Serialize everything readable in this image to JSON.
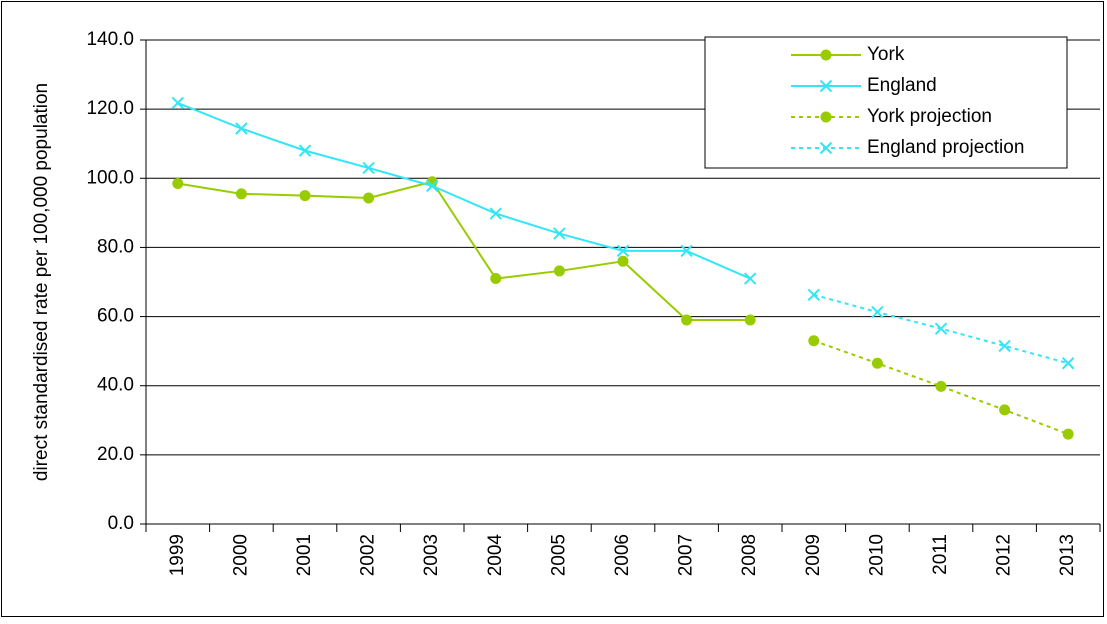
{
  "chart_data": {
    "type": "line",
    "y_label": "direct standardised rate per 100,000 population",
    "categories": [
      "1999",
      "2000",
      "2001",
      "2002",
      "2003",
      "2004",
      "2005",
      "2006",
      "2007",
      "2008",
      "2009",
      "2010",
      "2011",
      "2012",
      "2013"
    ],
    "series": [
      {
        "name": "York",
        "color": "#99cc00",
        "marker": "circle",
        "dashed": false,
        "values": [
          98.5,
          95.5,
          95.0,
          94.3,
          99.0,
          71.0,
          73.2,
          76.0,
          59.0,
          59.0,
          null,
          null,
          null,
          null,
          null
        ]
      },
      {
        "name": "England",
        "color": "#33e6f5",
        "marker": "x",
        "dashed": false,
        "values": [
          121.8,
          114.4,
          108.0,
          103.0,
          97.8,
          89.8,
          84.0,
          79.0,
          79.0,
          71.0,
          null,
          null,
          null,
          null,
          null
        ]
      },
      {
        "name": "York projection",
        "color": "#99cc00",
        "marker": "circle",
        "dashed": true,
        "values": [
          null,
          null,
          null,
          null,
          null,
          null,
          null,
          null,
          null,
          null,
          53.0,
          46.5,
          39.8,
          33.0,
          26.0
        ]
      },
      {
        "name": "England projection",
        "color": "#33e6f5",
        "marker": "x",
        "dashed": true,
        "values": [
          null,
          null,
          null,
          null,
          null,
          null,
          null,
          null,
          null,
          null,
          66.3,
          61.3,
          56.5,
          51.5,
          46.5
        ]
      }
    ],
    "ylim": [
      0,
      140
    ],
    "yticks": [
      {
        "value": 0,
        "label": "0.0"
      },
      {
        "value": 20,
        "label": "20.0"
      },
      {
        "value": 40,
        "label": "40.0"
      },
      {
        "value": 60,
        "label": "60.0"
      },
      {
        "value": 80,
        "label": "80.0"
      },
      {
        "value": 100,
        "label": "100.0"
      },
      {
        "value": 120,
        "label": "120.0"
      },
      {
        "value": 140,
        "label": "140.0"
      }
    ],
    "grid": true,
    "legend": "top-right"
  }
}
